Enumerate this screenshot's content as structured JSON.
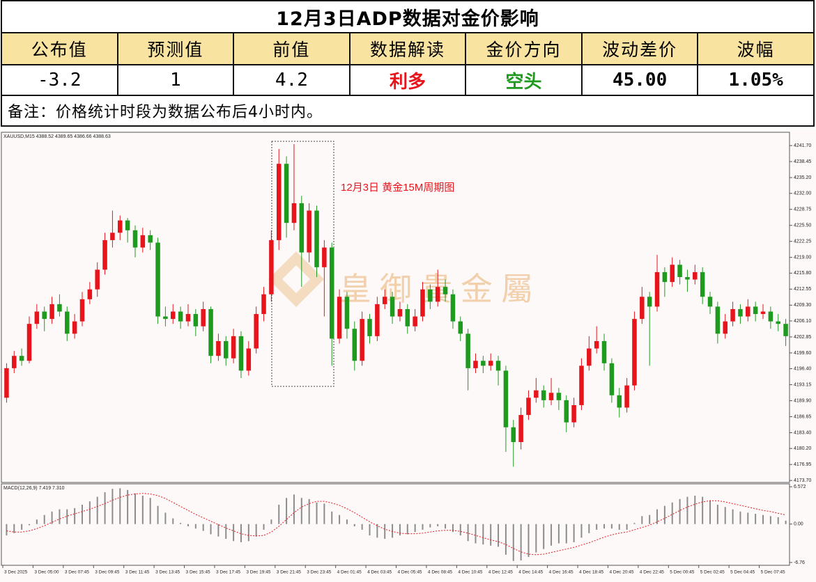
{
  "table": {
    "title": "12月3日ADP数据对金价影响",
    "header": [
      "公布值",
      "预测值",
      "前值",
      "数据解读",
      "金价方向",
      "波动差价",
      "波幅"
    ],
    "row": [
      "-3.2",
      "1",
      "4.2",
      "利多",
      "空头",
      "45.00",
      "1.05%"
    ],
    "note": "备注：价格统计时段为数据公布后4小时内。"
  },
  "chart_data": [
    {
      "type": "candlestick",
      "header": "XAUUSD,M15  4388.52 4389.65 4386.66 4388.63",
      "annotation": "12月3日  黄金15M周期图",
      "watermark": "皇御貴金屬",
      "up_color": "#e8141c",
      "down_color": "#1e9a1e",
      "categories": [
        "3 Dec 2025",
        null,
        null,
        null,
        "3 Dec 05:00",
        null,
        null,
        null,
        "3 Dec 07:45",
        null,
        null,
        null,
        "3 Dec 09:45",
        null,
        null,
        null,
        "3 Dec 11:45",
        null,
        null,
        null,
        "3 Dec 13:45",
        null,
        null,
        null,
        "3 Dec 15:45",
        null,
        null,
        null,
        "3 Dec 17:45",
        null,
        null,
        null,
        "3 Dec 19:45",
        null,
        null,
        null,
        "3 Dec 21:45",
        null,
        null,
        null,
        "3 Dec 23:45",
        null,
        null,
        null,
        "4 Dec 01:45",
        null,
        null,
        null,
        "4 Dec 03:45",
        null,
        null,
        null,
        "4 Dec 05:45",
        null,
        null,
        null,
        "4 Dec 08:45",
        null,
        null,
        null,
        "4 Dec 10:45",
        null,
        null,
        null,
        "4 Dec 12:45",
        null,
        null,
        null,
        "4 Dec 14:45",
        null,
        null,
        null,
        "4 Dec 16:45",
        null,
        null,
        null,
        "4 Dec 18:45",
        null,
        null,
        null,
        "4 Dec 20:45",
        null,
        null,
        null,
        "4 Dec 22:45",
        null,
        null,
        null,
        "5 Dec 00:45",
        null,
        null,
        null,
        "5 Dec 02:45",
        null,
        null,
        null,
        "5 Dec 04:45",
        null,
        null,
        null,
        "5 Dec 07:45",
        null,
        null,
        null
      ],
      "open": [
        4190.5,
        4196.5,
        4199.0,
        4198.0,
        4205.5,
        4208.0,
        4206.5,
        4209.5,
        4208.0,
        4203.5,
        4206.0,
        4210.5,
        4212.5,
        4216.5,
        4222.5,
        4224.0,
        4226.5,
        4224.5,
        4221.0,
        4223.5,
        4222.0,
        4207.0,
        4206.5,
        4208.0,
        4206.0,
        4207.5,
        4205.0,
        4208.5,
        4199.0,
        4202.0,
        4198.5,
        4203.0,
        4196.0,
        4200.5,
        4207.5,
        4211.5,
        4222.5,
        4238.0,
        4226.0,
        4230.0,
        4220.0,
        4228.5,
        4217.0,
        4221.0,
        4202.5,
        4211.0,
        4204.5,
        4198.0,
        4206.5,
        4203.0,
        4209.5,
        4211.0,
        4207.0,
        4208.5,
        4205.0,
        4207.0,
        4212.5,
        4210.0,
        4213.0,
        4211.5,
        4206.0,
        4203.5,
        4196.5,
        4198.0,
        4197.0,
        4198.0,
        4196.0,
        4184.5,
        4181.5,
        4187.0,
        4190.5,
        4192.0,
        4190.0,
        4191.5,
        4190.0,
        4185.5,
        4189.0,
        4197.0,
        4200.5,
        4202.0,
        4197.5,
        4191.0,
        4188.5,
        4193.0,
        4206.5,
        4211.0,
        4209.0,
        4216.0,
        4214.0,
        4217.5,
        4215.0,
        4214.5,
        4216.0,
        4211.0,
        4209.0,
        4203.5,
        4206.0,
        4208.5,
        4207.0,
        4209.0,
        4207.5,
        4208.0,
        4206.0,
        4205.5
      ],
      "high": [
        4197.5,
        4200.0,
        4200.5,
        4207.0,
        4209.5,
        4209.0,
        4211.0,
        4211.5,
        4209.0,
        4207.5,
        4212.0,
        4214.0,
        4218.0,
        4224.0,
        4228.5,
        4227.5,
        4227.0,
        4225.5,
        4225.0,
        4224.5,
        4223.0,
        4209.0,
        4209.5,
        4209.0,
        4209.5,
        4208.5,
        4210.0,
        4209.0,
        4203.5,
        4203.0,
        4204.5,
        4204.0,
        4202.0,
        4209.0,
        4213.0,
        4224.5,
        4241.0,
        4239.5,
        4242.0,
        4231.5,
        4230.0,
        4229.5,
        4222.5,
        4222.0,
        4212.5,
        4212.0,
        4206.0,
        4208.0,
        4207.5,
        4211.0,
        4212.5,
        4212.0,
        4210.0,
        4209.5,
        4208.5,
        4214.0,
        4213.5,
        4216.5,
        4214.5,
        4212.5,
        4207.0,
        4204.5,
        4199.5,
        4199.0,
        4199.5,
        4199.0,
        4197.0,
        4186.0,
        4188.5,
        4192.0,
        4194.5,
        4193.0,
        4194.5,
        4192.5,
        4191.0,
        4190.5,
        4198.5,
        4203.0,
        4205.0,
        4203.5,
        4198.5,
        4192.5,
        4194.5,
        4208.0,
        4213.0,
        4212.0,
        4219.5,
        4217.0,
        4219.0,
        4218.5,
        4216.5,
        4217.5,
        4217.0,
        4212.0,
        4210.0,
        4207.5,
        4210.0,
        4209.5,
        4210.5,
        4210.0,
        4209.5,
        4209.0,
        4207.5,
        4206.5
      ],
      "low": [
        4189.5,
        4195.5,
        4197.0,
        4197.5,
        4204.5,
        4204.0,
        4205.5,
        4207.0,
        4202.0,
        4202.5,
        4205.0,
        4209.5,
        4211.0,
        4215.5,
        4221.0,
        4222.5,
        4222.0,
        4219.0,
        4220.0,
        4220.5,
        4205.5,
        4205.0,
        4205.5,
        4204.5,
        4205.0,
        4203.0,
        4204.0,
        4197.5,
        4198.0,
        4197.0,
        4197.5,
        4194.5,
        4195.0,
        4199.5,
        4206.0,
        4210.0,
        4220.5,
        4223.0,
        4224.5,
        4213.0,
        4218.0,
        4215.0,
        4207.0,
        4197.0,
        4201.5,
        4202.5,
        4196.0,
        4197.0,
        4201.5,
        4202.0,
        4208.5,
        4205.5,
        4206.0,
        4203.5,
        4204.0,
        4206.0,
        4208.5,
        4209.0,
        4210.0,
        4204.5,
        4202.0,
        4192.0,
        4195.5,
        4195.5,
        4196.0,
        4193.0,
        4179.5,
        4176.5,
        4180.0,
        4186.0,
        4189.5,
        4188.5,
        4189.0,
        4188.0,
        4183.5,
        4184.5,
        4188.0,
        4196.0,
        4199.5,
        4196.0,
        4189.5,
        4186.5,
        4187.5,
        4192.0,
        4205.5,
        4197.0,
        4208.0,
        4211.0,
        4213.0,
        4213.5,
        4212.0,
        4213.5,
        4209.5,
        4207.5,
        4201.5,
        4202.5,
        4205.0,
        4205.5,
        4206.0,
        4206.0,
        4206.5,
        4204.5,
        4204.0,
        4201.0
      ],
      "close": [
        4196.5,
        4199.0,
        4198.0,
        4205.5,
        4208.0,
        4206.5,
        4209.5,
        4208.0,
        4203.5,
        4206.0,
        4210.5,
        4212.5,
        4216.5,
        4222.5,
        4224.0,
        4226.5,
        4224.5,
        4221.0,
        4223.5,
        4222.0,
        4207.0,
        4206.5,
        4208.0,
        4206.0,
        4207.5,
        4205.0,
        4208.5,
        4199.0,
        4202.0,
        4198.5,
        4203.0,
        4196.0,
        4200.5,
        4207.5,
        4211.5,
        4222.5,
        4238.0,
        4226.0,
        4230.0,
        4220.0,
        4228.5,
        4217.0,
        4221.0,
        4202.5,
        4211.0,
        4204.5,
        4198.0,
        4206.5,
        4203.0,
        4209.5,
        4211.0,
        4207.0,
        4208.5,
        4205.0,
        4207.0,
        4212.5,
        4210.0,
        4213.0,
        4211.5,
        4206.0,
        4203.5,
        4196.5,
        4198.0,
        4197.0,
        4198.0,
        4196.0,
        4184.5,
        4181.5,
        4187.0,
        4190.5,
        4192.0,
        4190.0,
        4191.5,
        4190.0,
        4185.5,
        4189.0,
        4197.0,
        4200.5,
        4202.0,
        4197.5,
        4191.0,
        4188.5,
        4193.0,
        4206.5,
        4211.0,
        4209.0,
        4216.0,
        4214.0,
        4217.5,
        4215.0,
        4214.5,
        4216.0,
        4211.0,
        4209.0,
        4203.5,
        4206.0,
        4208.5,
        4207.0,
        4209.0,
        4207.5,
        4208.0,
        4206.0,
        4205.5,
        4203.0
      ],
      "ylim": [
        4173.3,
        4244.4
      ],
      "yticks": [
        {
          "value": 4241.7,
          "label": "4241.70"
        },
        4238.45,
        {
          "value": 4235.2,
          "label": "4235.20"
        },
        {
          "value": 4232,
          "label": "4232.00"
        },
        4228.75,
        {
          "value": 4225.5,
          "label": "4225.50"
        },
        4222.25,
        {
          "value": 4219,
          "label": "4219.00"
        },
        {
          "value": 4215.8,
          "label": "4215.80"
        },
        4212.55,
        {
          "value": 4209.3,
          "label": "4209.30"
        },
        {
          "value": 4206.1,
          "label": "4206.10"
        },
        4202.85,
        {
          "value": 4199.6,
          "label": "4199.60"
        },
        {
          "value": 4196.4,
          "label": "4196.40"
        },
        4193.15,
        {
          "value": 4189.9,
          "label": "4189.90"
        },
        4186.65,
        {
          "value": 4183.4,
          "label": "4183.40"
        },
        {
          "value": 4180.2,
          "label": "4180.20"
        },
        4176.95,
        {
          "value": 4173.7,
          "label": "4173.70"
        }
      ]
    },
    {
      "type": "macd",
      "title": "MACD(12,26,9) 7.419 7.310",
      "histogram_color": "#8c8c8c",
      "signal_color": "#e8141c",
      "histogram": [
        -2.0,
        -1.6,
        -1.0,
        -0.2,
        0.8,
        1.6,
        2.2,
        2.6,
        2.6,
        2.8,
        3.4,
        4.0,
        4.8,
        5.6,
        6.2,
        6.3,
        6.0,
        5.4,
        5.0,
        4.6,
        3.2,
        2.0,
        1.0,
        0.2,
        -0.4,
        -0.8,
        -1.2,
        -1.8,
        -2.2,
        -2.6,
        -3.0,
        -3.2,
        -3.0,
        -2.2,
        -1.0,
        0.8,
        3.4,
        4.6,
        5.2,
        4.6,
        4.4,
        3.8,
        3.6,
        2.2,
        1.6,
        0.8,
        -0.4,
        -1.0,
        -2.0,
        -2.4,
        -2.6,
        -2.4,
        -2.0,
        -1.8,
        -1.4,
        -1.0,
        -0.6,
        -0.4,
        -0.8,
        -1.4,
        -2.0,
        -3.0,
        -3.4,
        -3.6,
        -3.8,
        -4.0,
        -5.4,
        -6.5,
        -6.4,
        -5.8,
        -5.0,
        -4.4,
        -3.8,
        -3.4,
        -3.4,
        -3.2,
        -2.4,
        -1.6,
        -1.0,
        -0.8,
        -0.8,
        -1.0,
        -1.0,
        0.2,
        1.4,
        1.6,
        2.6,
        3.2,
        3.8,
        4.4,
        4.8,
        5.0,
        4.8,
        4.2,
        3.4,
        3.0,
        2.6,
        2.2,
        2.0,
        1.8,
        1.6,
        1.4,
        1.2,
        0.6
      ],
      "signal": [
        -1.2,
        -1.4,
        -1.4,
        -1.2,
        -0.8,
        -0.3,
        0.3,
        0.9,
        1.4,
        1.8,
        2.2,
        2.6,
        3.1,
        3.6,
        4.2,
        4.7,
        5.1,
        5.3,
        5.4,
        5.3,
        5.0,
        4.5,
        3.8,
        3.1,
        2.4,
        1.7,
        1.1,
        0.5,
        -0.1,
        -0.7,
        -1.2,
        -1.7,
        -2.0,
        -2.1,
        -2.0,
        -1.4,
        -0.4,
        0.8,
        2.0,
        3.0,
        3.6,
        4.0,
        4.0,
        3.7,
        3.3,
        2.7,
        2.0,
        1.2,
        0.4,
        -0.3,
        -0.9,
        -1.3,
        -1.6,
        -1.7,
        -1.7,
        -1.6,
        -1.4,
        -1.2,
        -1.1,
        -1.1,
        -1.3,
        -1.6,
        -2.0,
        -2.4,
        -2.8,
        -3.1,
        -3.6,
        -4.3,
        -4.9,
        -5.3,
        -5.4,
        -5.3,
        -5.0,
        -4.7,
        -4.4,
        -4.1,
        -3.7,
        -3.3,
        -2.8,
        -2.3,
        -1.9,
        -1.6,
        -1.4,
        -1.0,
        -0.6,
        -0.2,
        0.4,
        1.0,
        1.7,
        2.4,
        3.0,
        3.5,
        3.9,
        4.1,
        4.1,
        3.9,
        3.6,
        3.3,
        3.0,
        2.7,
        2.4,
        2.2,
        1.9,
        1.6
      ],
      "ylim": [
        -7.26,
        7.08
      ],
      "yticks": [
        6.572,
        {
          "value": 0,
          "label": "0.00"
        },
        -6.76
      ]
    }
  ]
}
